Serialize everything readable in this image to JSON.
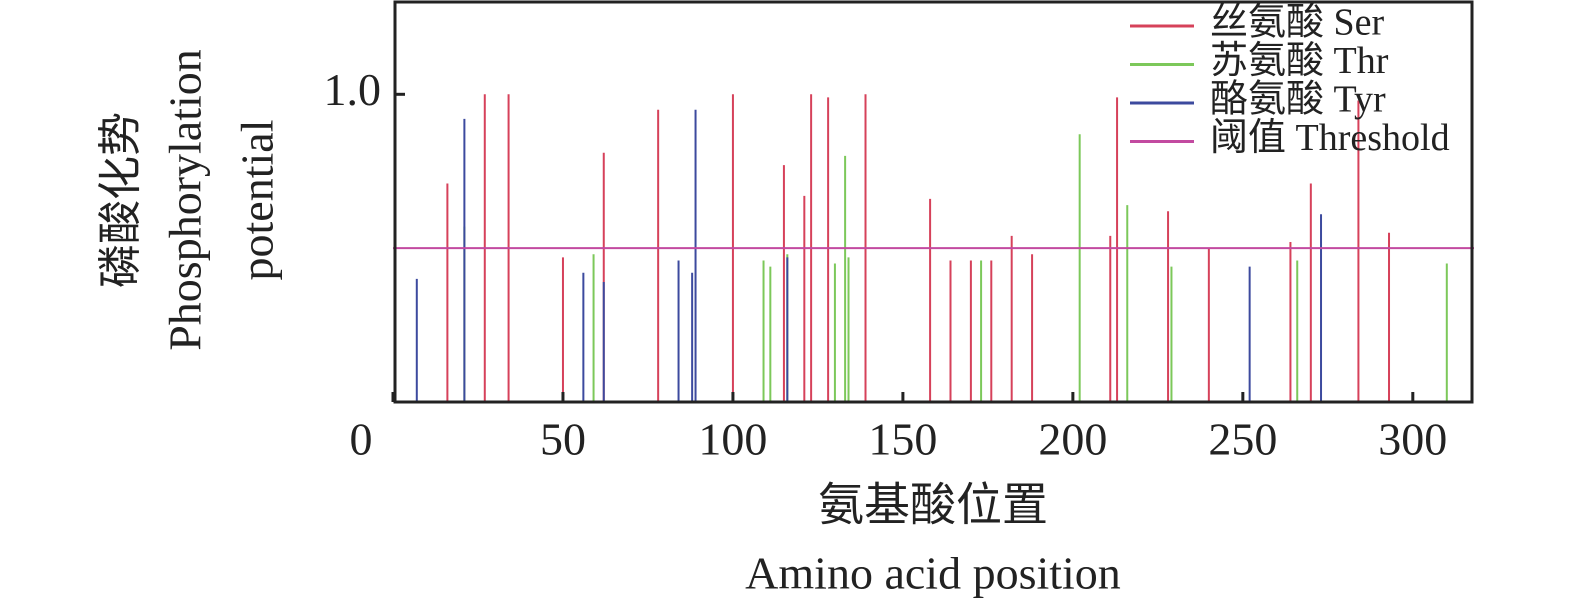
{
  "chart_data": {
    "type": "stem",
    "xlabel": [
      "氨基酸位置",
      "Amino acid position"
    ],
    "ylabel": [
      "磷酸化势",
      "Phosphorylation",
      "potential"
    ],
    "xlim": [
      0,
      318
    ],
    "ylim": [
      0,
      1.3
    ],
    "xticks": [
      0,
      50,
      100,
      150,
      200,
      250,
      300
    ],
    "yticks": [
      {
        "value": 1,
        "label": "1.0"
      }
    ],
    "legend": "upper right",
    "series": [
      {
        "name": "丝氨酸 Ser",
        "color": "#d6415a",
        "x": [
          16,
          27,
          34,
          50,
          62,
          78,
          100,
          115,
          121,
          123,
          128,
          139,
          158,
          164,
          170,
          176,
          182,
          188,
          211,
          213,
          228,
          240,
          264,
          270,
          284,
          293
        ],
        "values": [
          0.71,
          1.0,
          1.0,
          0.47,
          0.81,
          0.95,
          1.0,
          0.77,
          0.67,
          1.0,
          0.99,
          1.0,
          0.66,
          0.46,
          0.46,
          0.46,
          0.54,
          0.48,
          0.54,
          0.99,
          0.62,
          0.5,
          0.52,
          0.71,
          0.98,
          0.55
        ]
      },
      {
        "name": "苏氨酸 Thr",
        "color": "#7cc85a",
        "x": [
          21,
          59,
          109,
          111,
          116,
          130,
          133,
          134,
          173,
          202,
          216,
          229,
          266,
          310
        ],
        "values": [
          0.57,
          0.48,
          0.46,
          0.44,
          0.48,
          0.45,
          0.8,
          0.47,
          0.46,
          0.87,
          0.64,
          0.44,
          0.46,
          0.45
        ]
      },
      {
        "name": "酪氨酸 Tyr",
        "color": "#3c4a9e",
        "x": [
          7,
          21,
          56,
          62,
          84,
          88,
          89,
          116,
          252,
          273
        ],
        "values": [
          0.4,
          0.92,
          0.42,
          0.39,
          0.46,
          0.42,
          0.95,
          0.47,
          0.44,
          0.61
        ]
      }
    ],
    "threshold": {
      "name": "阈值 Threshold",
      "color": "#c24aa0",
      "value": 0.5
    }
  }
}
